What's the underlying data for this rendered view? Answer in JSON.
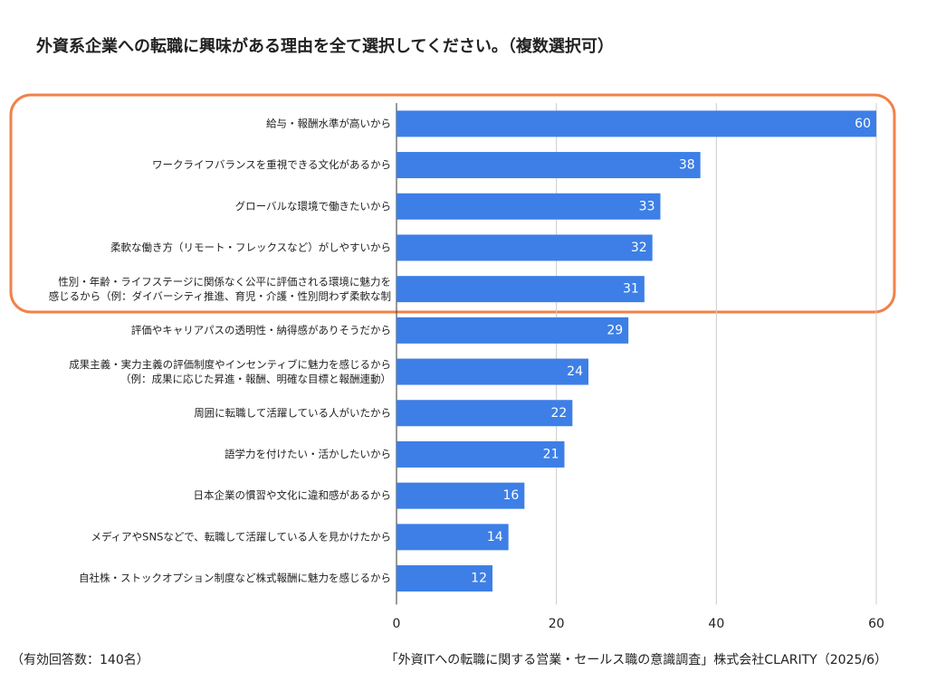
{
  "chart_data": {
    "type": "bar",
    "orientation": "horizontal",
    "title": "外資系企業への転職に興味がある理由を全て選択してください。（複数選択可）",
    "categories": [
      "給与・報酬水準が高いから",
      "ワークライフバランスを重視できる文化があるから",
      "グローバルな環境で働きたいから",
      "柔軟な働き方（リモート・フレックスなど）がしやすいから",
      "性別・年齢・ライフステージに関係なく公平に評価される環境に魅力を\n感じるから（例：ダイバーシティ推進、育児・介護・性別問わず柔軟な制",
      "評価やキャリアパスの透明性・納得感がありそうだから",
      "成果主義・実力主義の評価制度やインセンティブに魅力を感じるから\n（例：成果に応じた昇進・報酬、明確な目標と報酬連動）",
      "周囲に転職して活躍している人がいたから",
      "語学力を付けたい・活かしたいから",
      "日本企業の慣習や文化に違和感があるから",
      "メディアやSNSなどで、転職して活躍している人を見かけたから",
      "自社株・ストックオプション制度など株式報酬に魅力を感じるから"
    ],
    "values": [
      60,
      38,
      33,
      32,
      31,
      29,
      24,
      22,
      21,
      16,
      14,
      12
    ],
    "color": "#3d7fe6",
    "xlim": [
      0,
      60
    ],
    "xticks": [
      0,
      20,
      40,
      60
    ],
    "grid": true,
    "footnote": "（有効回答数：140名）",
    "source": "「外資ITへの転職に関する営業・セールス職の意識調査」株式会社CLARITY（2025/6）"
  }
}
